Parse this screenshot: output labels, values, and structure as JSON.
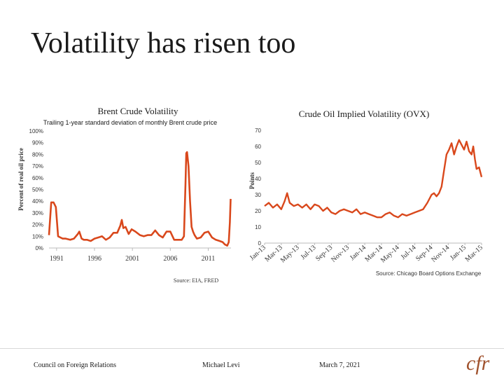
{
  "slide": {
    "title": "Volatility has risen too",
    "footer": {
      "org": "Council on Foreign Relations",
      "author": "Michael Levi",
      "date": "March 7, 2021",
      "logo": "cfr"
    }
  },
  "colors": {
    "line": "#d9481c",
    "text": "#333333",
    "grid": "#e3e3e3",
    "logo": "#a0522d"
  },
  "chart_data": [
    {
      "type": "line",
      "title": "Brent Crude Volatility",
      "subtitle": "Trailing 1-year standard deviation of monthly Brent crude price",
      "ylabel": "Percent of real oil price",
      "xlabel": "",
      "source": "Source: EIA, FRED",
      "ylim": [
        0,
        100
      ],
      "yticks": [
        "0%",
        "10%",
        "20%",
        "30%",
        "40%",
        "50%",
        "60%",
        "70%",
        "80%",
        "90%",
        "100%"
      ],
      "xlim": [
        1990,
        2014
      ],
      "xticks": [
        "1991",
        "1996",
        "2001",
        "2006",
        "2011"
      ],
      "grid": false,
      "series": [
        {
          "x": [
            1990.0,
            1990.3,
            1990.6,
            1990.9,
            1991.2,
            1991.5,
            1991.8,
            1992.2,
            1992.8,
            1993.3,
            1993.8,
            1994.0,
            1994.3,
            1994.6,
            1995.0,
            1995.5,
            1996.0,
            1996.5,
            1997.0,
            1997.5,
            1998.0,
            1998.5,
            1999.0,
            1999.4,
            1999.6,
            1999.8,
            2000.1,
            2000.5,
            2000.9,
            2001.4,
            2002.0,
            2002.5,
            2003.0,
            2003.5,
            2004.0,
            2004.5,
            2005.0,
            2005.5,
            2006.0,
            2006.5,
            2007.0,
            2007.5,
            2007.8,
            2008.0,
            2008.1,
            2008.2,
            2008.4,
            2008.6,
            2008.8,
            2009.0,
            2009.2,
            2009.5,
            2010.0,
            2010.5,
            2011.0,
            2011.5,
            2012.0,
            2012.5,
            2012.9,
            2013.2,
            2013.5,
            2013.7,
            2013.85,
            2013.95
          ],
          "values": [
            11,
            39,
            39,
            35,
            10,
            9,
            8,
            8,
            7,
            8,
            12,
            14,
            8,
            7,
            7,
            6,
            8,
            9,
            10,
            7,
            9,
            13,
            13,
            19,
            24,
            17,
            18,
            12,
            16,
            14,
            11,
            10,
            11,
            11,
            15,
            11,
            9,
            14,
            14,
            7,
            7,
            7,
            10,
            55,
            81,
            82,
            70,
            40,
            18,
            14,
            11,
            8,
            9,
            13,
            14,
            9,
            7,
            6,
            5,
            3,
            2,
            5,
            22,
            42
          ]
        }
      ]
    },
    {
      "type": "line",
      "title": "Crude Oil Implied Volatility (OVX)",
      "ylabel": "Points",
      "xlabel": "",
      "source": "Source: Chicago Board Options Exchange",
      "ylim": [
        0,
        70
      ],
      "yticks": [
        "0",
        "10",
        "20",
        "30",
        "40",
        "50",
        "60",
        "70"
      ],
      "xlim": [
        0,
        26
      ],
      "xticks": [
        "Jan-13",
        "Mar-13",
        "May-13",
        "Jul-13",
        "Sep-13",
        "Nov-13",
        "Jan-14",
        "Mar-14",
        "May-14",
        "Jul-14",
        "Sep-14",
        "Nov-14",
        "Jan-15",
        "Mar-15"
      ],
      "grid": false,
      "series": [
        {
          "x": [
            0,
            0.5,
            1.0,
            1.5,
            2.0,
            2.4,
            2.7,
            3.0,
            3.5,
            4.0,
            4.5,
            5.0,
            5.5,
            6.0,
            6.5,
            7.0,
            7.5,
            8.0,
            8.5,
            9.0,
            9.5,
            10.0,
            10.5,
            11.0,
            11.5,
            12.0,
            12.5,
            13.0,
            13.5,
            14.0,
            14.5,
            15.0,
            15.5,
            16.0,
            16.5,
            17.0,
            17.5,
            18.0,
            18.5,
            19.0,
            19.5,
            20.0,
            20.3,
            20.6,
            20.9,
            21.2,
            21.5,
            21.8,
            22.1,
            22.4,
            22.7,
            23.0,
            23.3,
            23.6,
            23.9,
            24.2,
            24.5,
            24.8,
            25.0,
            25.2,
            25.4,
            25.7,
            26.0
          ],
          "values": [
            23,
            25,
            22,
            24,
            21,
            26,
            31,
            25,
            23,
            24,
            22,
            24,
            21,
            24,
            23,
            20,
            22,
            19,
            18,
            20,
            21,
            20,
            19,
            21,
            18,
            19,
            18,
            17,
            16,
            16,
            18,
            19,
            17,
            16,
            18,
            17,
            18,
            19,
            20,
            21,
            25,
            30,
            31,
            29,
            31,
            35,
            45,
            55,
            58,
            62,
            55,
            60,
            64,
            61,
            58,
            63,
            57,
            55,
            60,
            52,
            46,
            47,
            41
          ]
        }
      ]
    }
  ]
}
